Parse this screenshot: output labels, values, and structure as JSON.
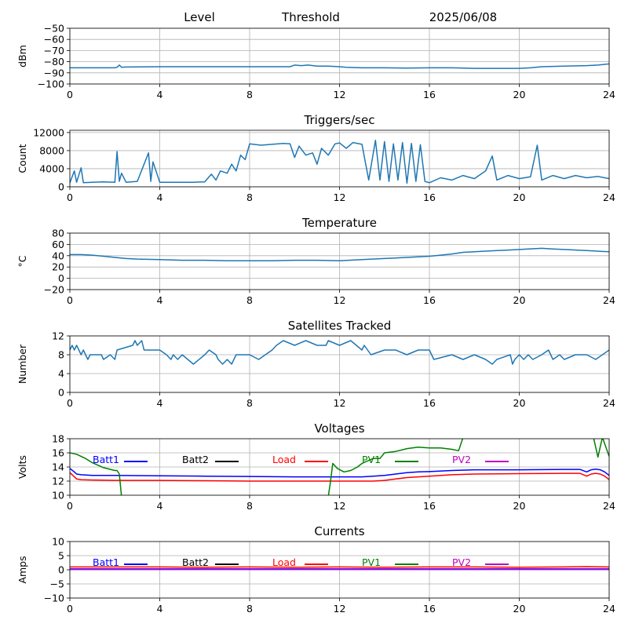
{
  "header": {
    "level_label": "Level",
    "threshold_label": "Threshold",
    "date": "2025/06/08"
  },
  "legend_labels": {
    "batt1": "Batt1",
    "batt2": "Batt2",
    "load": "Load",
    "pv1": "PV1",
    "pv2": "PV2"
  },
  "colors": {
    "primary": "#1f77b4",
    "batt1": "#0000ff",
    "batt2": "#000000",
    "load": "#ff0000",
    "pv1": "#008000",
    "pv2": "#bf00bf",
    "grid": "#b0b0b0"
  },
  "chart_data": [
    {
      "id": "level",
      "type": "line",
      "title": "",
      "xlabel": "",
      "ylabel": "dBm",
      "xlim": [
        0,
        24
      ],
      "ylim": [
        -100,
        -50
      ],
      "xticks": [
        0,
        4,
        8,
        12,
        16,
        20,
        24
      ],
      "yticks": [
        -100,
        -90,
        -80,
        -70,
        -60,
        -50
      ],
      "grid": true,
      "series": [
        {
          "color": "#1f77b4",
          "x": [
            0,
            2,
            2.1,
            2.2,
            2.3,
            2.5,
            4,
            6,
            8,
            9,
            9.8,
            10,
            10.3,
            10.6,
            11,
            11.5,
            12,
            12.3,
            13,
            14,
            15,
            16,
            17,
            18,
            19,
            20,
            20.5,
            21,
            22,
            23,
            23.5,
            24
          ],
          "y": [
            -85.5,
            -85.5,
            -85,
            -83,
            -85,
            -84.8,
            -84.5,
            -84.5,
            -84.5,
            -84.5,
            -84.5,
            -83,
            -83.5,
            -83,
            -84,
            -84,
            -84.5,
            -85,
            -85.5,
            -85.5,
            -85.8,
            -85.5,
            -85.5,
            -86,
            -86,
            -86,
            -85.5,
            -84.5,
            -84,
            -83.5,
            -83,
            -82
          ]
        }
      ]
    },
    {
      "id": "triggers",
      "type": "line",
      "title": "Triggers/sec",
      "xlabel": "",
      "ylabel": "Count",
      "xlim": [
        0,
        24
      ],
      "ylim": [
        0,
        12500
      ],
      "xticks": [
        0,
        4,
        8,
        12,
        16,
        20,
        24
      ],
      "yticks": [
        0,
        4000,
        8000,
        12000
      ],
      "grid": true,
      "series": [
        {
          "color": "#1f77b4",
          "x": [
            0,
            0.2,
            0.3,
            0.5,
            0.6,
            1,
            1.5,
            2,
            2.1,
            2.2,
            2.3,
            2.5,
            3,
            3.5,
            3.6,
            3.7,
            4,
            4.5,
            5,
            5.5,
            6,
            6.3,
            6.5,
            6.7,
            7,
            7.2,
            7.4,
            7.6,
            7.8,
            8,
            8.5,
            9,
            9.5,
            9.8,
            10,
            10.2,
            10.5,
            10.8,
            11,
            11.2,
            11.5,
            11.8,
            12,
            12.3,
            12.6,
            13,
            13.3,
            13.6,
            13.8,
            14,
            14.2,
            14.4,
            14.6,
            14.8,
            15,
            15.2,
            15.4,
            15.6,
            15.8,
            16,
            16.5,
            17,
            17.5,
            18,
            18.5,
            18.8,
            19,
            19.5,
            20,
            20.5,
            20.8,
            21,
            21.5,
            22,
            22.5,
            23,
            23.5,
            24
          ],
          "y": [
            900,
            3500,
            1000,
            4200,
            900,
            1000,
            1100,
            1000,
            7800,
            1200,
            3000,
            1000,
            1200,
            7500,
            1200,
            5500,
            1000,
            1000,
            1000,
            1000,
            1100,
            2800,
            1500,
            3500,
            3000,
            5000,
            3500,
            7000,
            6000,
            9500,
            9200,
            9400,
            9600,
            9500,
            6500,
            9000,
            7000,
            7500,
            5000,
            8500,
            7000,
            9500,
            9700,
            8500,
            9800,
            9400,
            1500,
            10300,
            1500,
            10000,
            1200,
            9500,
            1500,
            9800,
            800,
            9600,
            1200,
            9300,
            1200,
            900,
            2000,
            1500,
            2500,
            1800,
            3500,
            6800,
            1500,
            2500,
            1800,
            2200,
            9200,
            1500,
            2500,
            1800,
            2500,
            2000,
            2300,
            1800
          ]
        }
      ]
    },
    {
      "id": "temperature",
      "type": "line",
      "title": "Temperature",
      "xlabel": "",
      "ylabel": "°C",
      "xlim": [
        0,
        24
      ],
      "ylim": [
        -20,
        80
      ],
      "xticks": [
        0,
        4,
        8,
        12,
        16,
        20,
        24
      ],
      "yticks": [
        -20,
        0,
        20,
        40,
        60,
        80
      ],
      "grid": true,
      "series": [
        {
          "color": "#1f77b4",
          "x": [
            0,
            0.5,
            1,
            1.5,
            2,
            2.5,
            3,
            4,
            5,
            6,
            7,
            8,
            9,
            10,
            11,
            12,
            13,
            14,
            15,
            16,
            16.5,
            17,
            17.5,
            18,
            19,
            20,
            21,
            21.5,
            22,
            23,
            24
          ],
          "y": [
            42,
            42,
            41,
            39,
            37,
            35,
            34,
            33,
            32,
            32,
            31,
            31,
            31,
            32,
            32,
            31,
            33,
            35,
            37,
            39,
            41,
            43,
            46,
            47,
            49,
            51,
            53,
            52,
            51,
            49,
            47
          ]
        }
      ]
    },
    {
      "id": "satellites",
      "type": "line",
      "title": "Satellites Tracked",
      "xlabel": "",
      "ylabel": "Number",
      "xlim": [
        0,
        24
      ],
      "ylim": [
        0,
        12
      ],
      "xticks": [
        0,
        4,
        8,
        12,
        16,
        20,
        24
      ],
      "yticks": [
        0,
        4,
        8,
        12
      ],
      "grid": true,
      "series": [
        {
          "color": "#1f77b4",
          "x": [
            0,
            0.1,
            0.2,
            0.3,
            0.4,
            0.5,
            0.6,
            0.7,
            0.8,
            0.9,
            1.4,
            1.5,
            1.8,
            2.0,
            2.1,
            2.8,
            2.9,
            3.0,
            3.2,
            3.3,
            3.5,
            4.0,
            4.3,
            4.5,
            4.6,
            4.8,
            5.0,
            5.5,
            6.0,
            6.2,
            6.5,
            6.6,
            6.8,
            7.0,
            7.2,
            7.4,
            7.6,
            8.0,
            8.4,
            9.0,
            9.2,
            9.5,
            10.0,
            10.5,
            11.0,
            11.4,
            11.5,
            12.0,
            12.5,
            13.0,
            13.1,
            13.4,
            14.0,
            14.5,
            15.0,
            15.5,
            16.0,
            16.2,
            17.0,
            17.5,
            18.0,
            18.5,
            18.8,
            19.0,
            19.6,
            19.7,
            19.8,
            20.0,
            20.2,
            20.4,
            20.6,
            21.0,
            21.3,
            21.5,
            21.8,
            22.0,
            22.5,
            23.0,
            23.4,
            24
          ],
          "y": [
            9,
            10,
            9,
            10,
            9,
            8,
            9,
            8,
            7,
            8,
            8,
            7,
            8,
            7,
            9,
            10,
            11,
            10,
            11,
            9,
            9,
            9,
            8,
            7,
            8,
            7,
            8,
            6,
            8,
            9,
            8,
            7,
            6,
            7,
            6,
            8,
            8,
            8,
            7,
            9,
            10,
            11,
            10,
            11,
            10,
            10,
            11,
            10,
            11,
            9,
            10,
            8,
            9,
            9,
            8,
            9,
            9,
            7,
            8,
            7,
            8,
            7,
            6,
            7,
            8,
            6,
            7,
            8,
            7,
            8,
            7,
            8,
            9,
            7,
            8,
            7,
            8,
            8,
            7,
            9
          ]
        }
      ]
    },
    {
      "id": "voltages",
      "type": "line",
      "title": "Voltages",
      "xlabel": "",
      "ylabel": "Volts",
      "xlim": [
        0,
        24
      ],
      "ylim": [
        10,
        18
      ],
      "xticks": [
        0,
        4,
        8,
        12,
        16,
        20,
        24
      ],
      "yticks": [
        10,
        12,
        14,
        16,
        18
      ],
      "grid": true,
      "series": [
        {
          "name": "Batt1",
          "color": "#0000ff",
          "x": [
            0,
            0.2,
            0.3,
            0.5,
            1,
            2,
            4,
            6,
            8,
            10,
            12,
            13,
            13.5,
            14,
            14.5,
            15,
            15.5,
            16,
            17,
            18,
            20,
            22,
            22.7,
            23,
            23.2,
            23.4,
            23.6,
            23.8,
            24
          ],
          "y": [
            13.8,
            13.3,
            13.0,
            12.9,
            12.8,
            12.8,
            12.75,
            12.7,
            12.65,
            12.6,
            12.6,
            12.6,
            12.7,
            12.8,
            13.0,
            13.2,
            13.3,
            13.35,
            13.5,
            13.6,
            13.6,
            13.65,
            13.65,
            13.3,
            13.6,
            13.7,
            13.6,
            13.3,
            12.8
          ]
        },
        {
          "name": "Load",
          "color": "#ff0000",
          "x": [
            0,
            0.2,
            0.3,
            0.5,
            1,
            2,
            4,
            6,
            8,
            10,
            12,
            13,
            13.5,
            14,
            14.5,
            15,
            15.5,
            16,
            17,
            18,
            20,
            22,
            22.7,
            23,
            23.2,
            23.4,
            23.6,
            23.8,
            24
          ],
          "y": [
            13.2,
            12.6,
            12.3,
            12.2,
            12.15,
            12.1,
            12.1,
            12.05,
            12.0,
            12.0,
            12.0,
            12.0,
            12.0,
            12.1,
            12.3,
            12.5,
            12.6,
            12.7,
            12.9,
            13.0,
            13.05,
            13.1,
            13.1,
            12.7,
            13.0,
            13.1,
            13.0,
            12.7,
            12.2
          ]
        },
        {
          "name": "PV1",
          "color": "#008000",
          "x": [
            0,
            0.3,
            0.7,
            1,
            1.5,
            2,
            2.1,
            2.2,
            2.3,
            11.5,
            11.6,
            11.7,
            11.9,
            12.2,
            12.5,
            12.8,
            13.0,
            13.5,
            13.8,
            14.0,
            14.5,
            15.0,
            15.5,
            16.0,
            16.5,
            17.0,
            17.3,
            17.5,
            23.3,
            23.5,
            23.7,
            24
          ],
          "y": [
            16.0,
            15.8,
            15.2,
            14.6,
            13.9,
            13.5,
            13.5,
            13.0,
            9.8,
            9.8,
            12.0,
            14.5,
            13.8,
            13.3,
            13.5,
            14.0,
            14.5,
            15.2,
            15.2,
            16.0,
            16.2,
            16.6,
            16.8,
            16.7,
            16.7,
            16.5,
            16.3,
            18.2,
            18.2,
            15.4,
            18.2,
            15.5
          ]
        }
      ]
    },
    {
      "id": "currents",
      "type": "line",
      "title": "Currents",
      "xlabel": "",
      "ylabel": "Amps",
      "xlim": [
        0,
        24
      ],
      "ylim": [
        -10,
        10
      ],
      "xticks": [
        0,
        4,
        8,
        12,
        16,
        20,
        24
      ],
      "yticks": [
        -10,
        -5,
        0,
        5,
        10
      ],
      "grid": true,
      "series": [
        {
          "name": "Load",
          "color": "#ff0000",
          "x": [
            0,
            2,
            4,
            6,
            8,
            10,
            12,
            14,
            16,
            18,
            20,
            22,
            23,
            24
          ],
          "y": [
            1.0,
            1.0,
            1.0,
            0.9,
            1.0,
            0.9,
            1.0,
            0.9,
            1.0,
            1.0,
            0.9,
            1.0,
            1.1,
            1.0
          ]
        },
        {
          "name": "Batt1",
          "color": "#0000ff",
          "x": [
            0,
            4,
            8,
            12,
            16,
            20,
            24
          ],
          "y": [
            0.3,
            0.3,
            0.3,
            0.3,
            0.3,
            0.3,
            0.3
          ]
        },
        {
          "name": "PV2",
          "color": "#bf00bf",
          "x": [
            0,
            4,
            8,
            12,
            16,
            20,
            24
          ],
          "y": [
            0.1,
            0.1,
            0.1,
            0.1,
            0.1,
            0.1,
            0.1
          ]
        }
      ]
    }
  ]
}
